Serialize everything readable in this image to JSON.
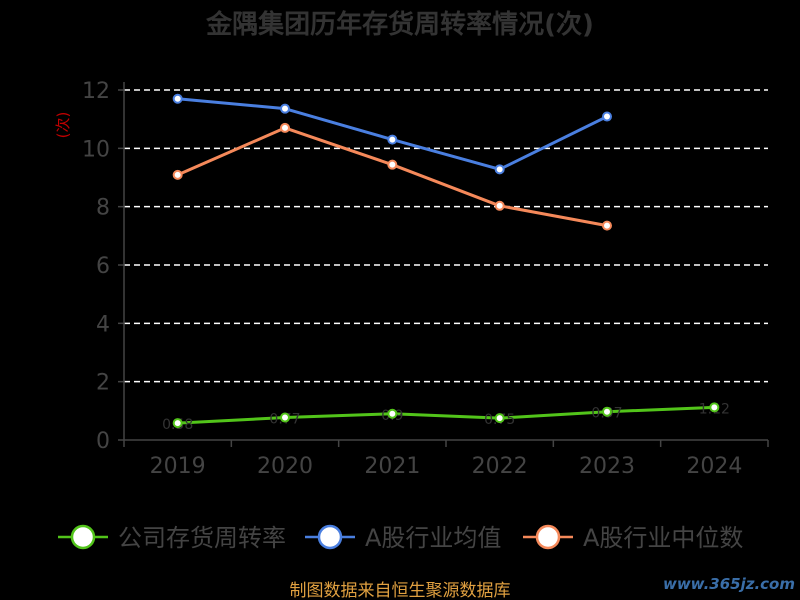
{
  "chart_data": {
    "type": "line",
    "title": "金隅集团历年存货周转率情况(次)",
    "ylabel": "(次)",
    "categories": [
      "2019",
      "2020",
      "2021",
      "2022",
      "2023",
      "2024"
    ],
    "ylim": [
      0,
      12
    ],
    "yticks": [
      0,
      2,
      4,
      6,
      8,
      10,
      12
    ],
    "grid": true,
    "legend_position": "bottom",
    "series": [
      {
        "name": "公司存货周转率",
        "color": "#52c41a",
        "values": [
          0.58,
          0.77,
          0.9,
          0.75,
          0.97,
          1.12
        ]
      },
      {
        "name": "A股行业均值",
        "color": "#4a7fe0",
        "values": [
          11.7,
          11.36,
          10.3,
          9.28,
          11.09,
          null
        ]
      },
      {
        "name": "A股行业中位数",
        "color": "#f5895a",
        "values": [
          9.09,
          10.7,
          9.44,
          8.03,
          7.35,
          null
        ]
      }
    ]
  },
  "footer": "制图数据来自恒生聚源数据库",
  "watermark": "www.365jz.com"
}
